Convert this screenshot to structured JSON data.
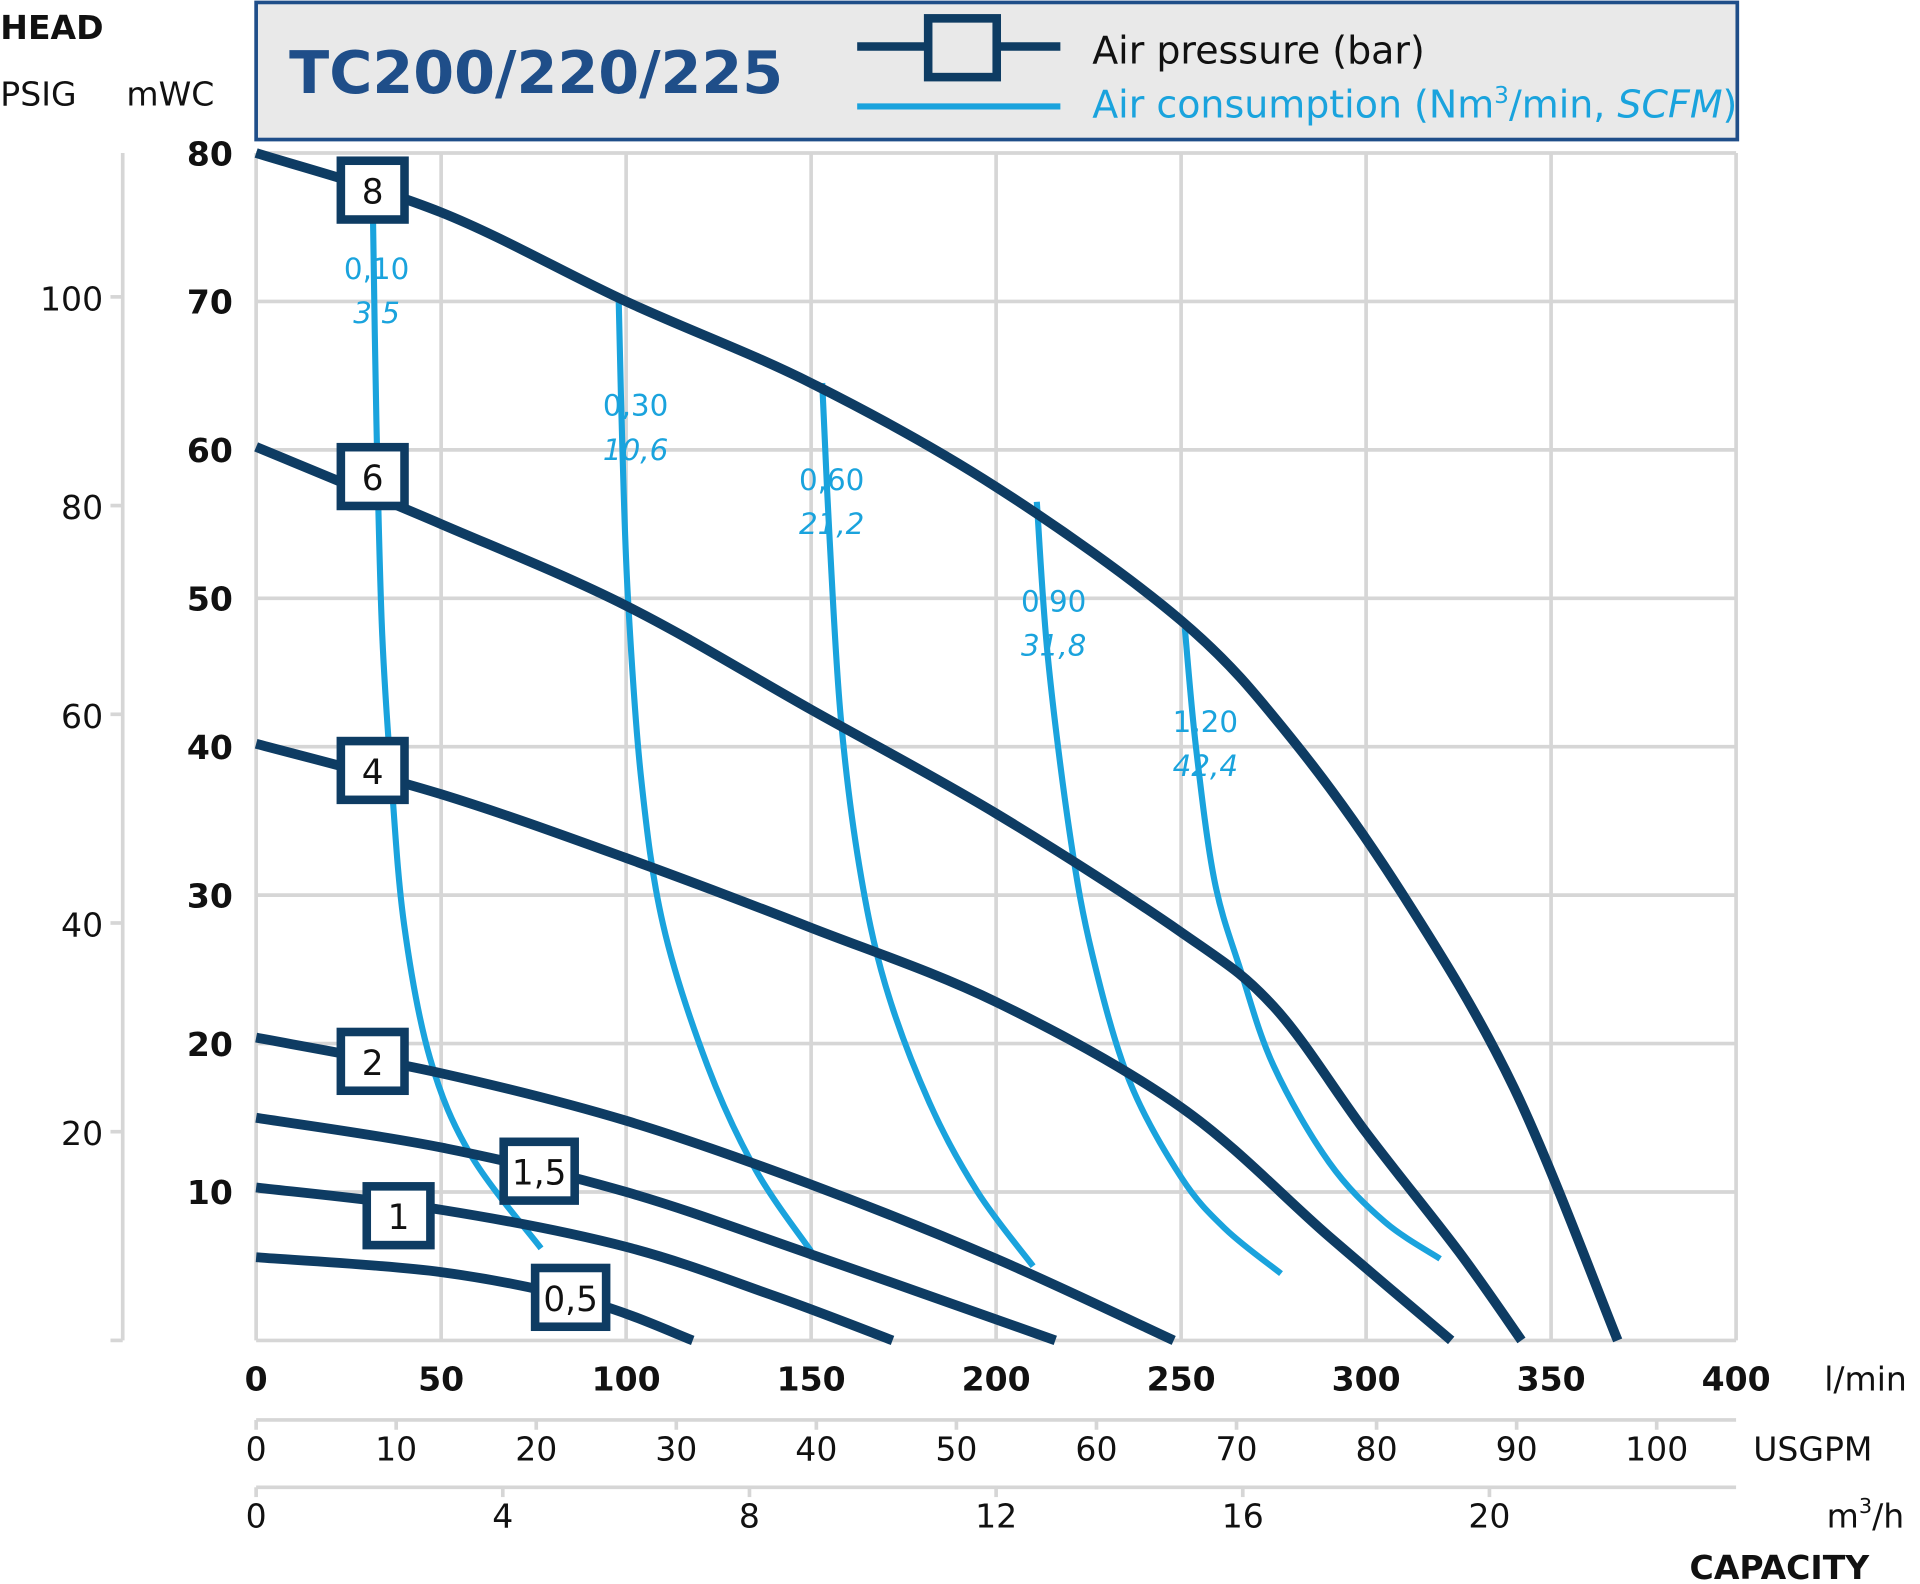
{
  "colors": {
    "pressure": "#0e3c63",
    "consumption": "#1aa3dd",
    "header_bg": "#e9e9e9",
    "header_border": "#1f4e89",
    "title": "#1f4e89",
    "grid": "#d6d6d6"
  },
  "chart_data": {
    "type": "line",
    "title": "TC200/220/225",
    "legend": {
      "placement": "top",
      "pressure": "Air pressure (bar)",
      "consumption_prefix": "Air consumption (Nm",
      "consumption_sup": "3",
      "consumption_mid": "/min, ",
      "consumption_italic": "SCFM",
      "consumption_suffix": ")"
    },
    "ylabel": "HEAD",
    "y_units": {
      "psig": "PSIG",
      "mwc": "mWC"
    },
    "xlabel": "CAPACITY",
    "x_units": {
      "lmin": "l/min",
      "usgpm": "USGPM",
      "m3h_base": "m",
      "m3h_sup": "3",
      "m3h_rest": "/h"
    },
    "xlim": [
      0,
      400
    ],
    "ylim": [
      0,
      80
    ],
    "grid": true,
    "x_ticks_lmin": [
      "0",
      "50",
      "100",
      "150",
      "200",
      "250",
      "300",
      "350",
      "400"
    ],
    "x_ticks_usgpm": [
      "0",
      "10",
      "20",
      "30",
      "40",
      "50",
      "60",
      "70",
      "80",
      "90",
      "100"
    ],
    "x_ticks_m3h": [
      "0",
      "4",
      "8",
      "12",
      "16",
      "20"
    ],
    "y_ticks_mwc": [
      "10",
      "20",
      "30",
      "40",
      "50",
      "60",
      "70",
      "80"
    ],
    "y_ticks_psig": [
      "20",
      "40",
      "60",
      "80",
      "100"
    ],
    "pressure_series": [
      {
        "name": "8",
        "points": [
          [
            0,
            80
          ],
          [
            50,
            76
          ],
          [
            100,
            70
          ],
          [
            150,
            64.5
          ],
          [
            200,
            57.5
          ],
          [
            250,
            48.5
          ],
          [
            280,
            40.5
          ],
          [
            310,
            30
          ],
          [
            340,
            17
          ],
          [
            368,
            0
          ]
        ],
        "label_at": [
          31.5,
          77.5
        ]
      },
      {
        "name": "6",
        "points": [
          [
            0,
            60.2
          ],
          [
            50,
            55
          ],
          [
            100,
            49.5
          ],
          [
            150,
            42.5
          ],
          [
            200,
            35.5
          ],
          [
            250,
            27.5
          ],
          [
            275,
            22.5
          ],
          [
            300,
            14
          ],
          [
            325,
            6
          ],
          [
            342,
            0
          ]
        ],
        "label_at": [
          31.5,
          58.2
        ]
      },
      {
        "name": "4",
        "points": [
          [
            0,
            40.2
          ],
          [
            50,
            36.8
          ],
          [
            100,
            32.5
          ],
          [
            150,
            27.8
          ],
          [
            200,
            22.8
          ],
          [
            250,
            15.7
          ],
          [
            290,
            7
          ],
          [
            323,
            0
          ]
        ],
        "label_at": [
          31.5,
          38.4
        ]
      },
      {
        "name": "2",
        "points": [
          [
            0,
            20.4
          ],
          [
            50,
            18
          ],
          [
            100,
            14.8
          ],
          [
            150,
            10.5
          ],
          [
            200,
            5.5
          ],
          [
            248,
            0
          ]
        ],
        "label_at": [
          31.5,
          18.8
        ]
      },
      {
        "name": "1,5",
        "points": [
          [
            0,
            15
          ],
          [
            50,
            13
          ],
          [
            100,
            10
          ],
          [
            150,
            5.8
          ],
          [
            216,
            0
          ]
        ],
        "label_at": [
          76.5,
          11.4
        ]
      },
      {
        "name": "1",
        "points": [
          [
            0,
            10.3
          ],
          [
            50,
            8.8
          ],
          [
            100,
            6.3
          ],
          [
            140,
            3
          ],
          [
            172,
            0
          ]
        ],
        "label_at": [
          38.5,
          8.4
        ]
      },
      {
        "name": "0,5",
        "points": [
          [
            0,
            5.6
          ],
          [
            50,
            4.6
          ],
          [
            90,
            2.6
          ],
          [
            118,
            0
          ]
        ],
        "label_at": [
          85,
          2.9
        ]
      }
    ],
    "consumption_series": [
      {
        "nm3min": "0,10",
        "scfm": "3,5",
        "points": [
          [
            31.5,
            77
          ],
          [
            32.5,
            62
          ],
          [
            34,
            48
          ],
          [
            36.5,
            38
          ],
          [
            40,
            28
          ],
          [
            47,
            19
          ],
          [
            58,
            12.5
          ],
          [
            77,
            6.2
          ]
        ],
        "label_at": [
          18,
          71.5
        ]
      },
      {
        "nm3min": "0,30",
        "scfm": "10,6",
        "points": [
          [
            98,
            70
          ],
          [
            99,
            60
          ],
          [
            100.5,
            50
          ],
          [
            104,
            38
          ],
          [
            110,
            28
          ],
          [
            122,
            18.5
          ],
          [
            135,
            11.5
          ],
          [
            150,
            6
          ]
        ],
        "label_at": [
          88,
          62.3
        ]
      },
      {
        "nm3min": "0,60",
        "scfm": "21,2",
        "points": [
          [
            153,
            64.5
          ],
          [
            155,
            54
          ],
          [
            158,
            42
          ],
          [
            163,
            32
          ],
          [
            170,
            24
          ],
          [
            182,
            16
          ],
          [
            195,
            10
          ],
          [
            210,
            5
          ]
        ],
        "label_at": [
          141,
          57.3
        ]
      },
      {
        "nm3min": "0,90",
        "scfm": "31,8",
        "points": [
          [
            211,
            56.5
          ],
          [
            214,
            46
          ],
          [
            220,
            34
          ],
          [
            226,
            26
          ],
          [
            236,
            17.5
          ],
          [
            250,
            11
          ],
          [
            262,
            7.5
          ],
          [
            277,
            4.5
          ]
        ],
        "label_at": [
          201,
          49.1
        ]
      },
      {
        "nm3min": "1,20",
        "scfm": "42,4",
        "points": [
          [
            251,
            48
          ],
          [
            254,
            40
          ],
          [
            259,
            31
          ],
          [
            266,
            25
          ],
          [
            275,
            18.5
          ],
          [
            290,
            12
          ],
          [
            305,
            8
          ],
          [
            320,
            5.5
          ]
        ],
        "label_at": [
          242,
          41
        ]
      }
    ]
  }
}
